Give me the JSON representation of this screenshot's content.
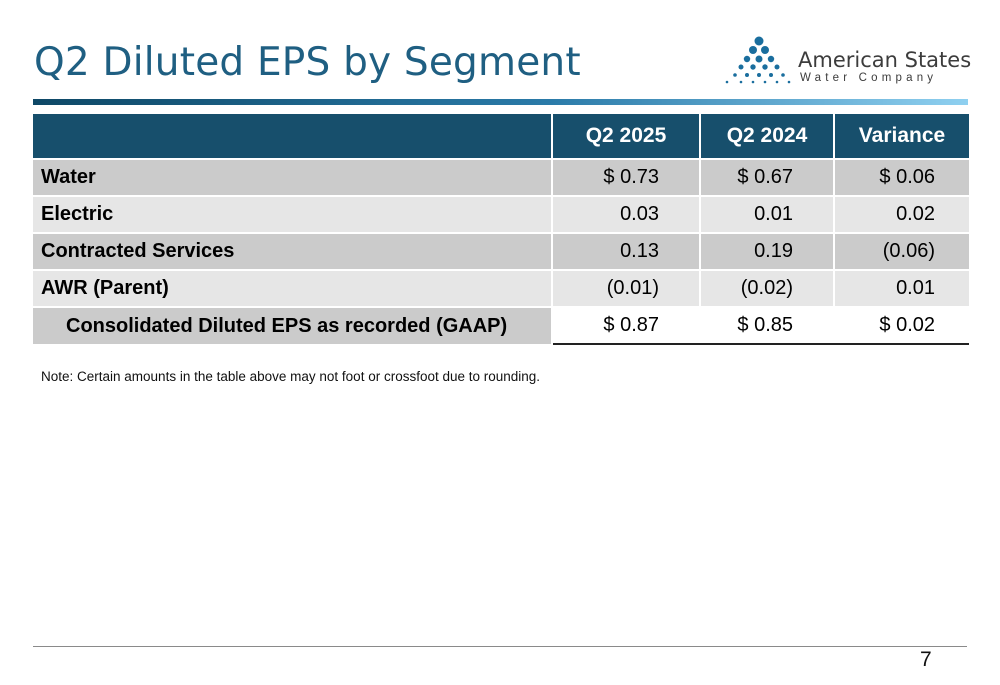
{
  "title": "Q2 Diluted EPS by Segment",
  "logo": {
    "name": "American States",
    "sub": "Water Company"
  },
  "table": {
    "headers": [
      "",
      "Q2 2025",
      "Q2 2024",
      "Variance"
    ],
    "rows": [
      {
        "label": "Water",
        "q2_2025": "$ 0.73",
        "q2_2024": "$  0.67",
        "variance": "$ 0.06"
      },
      {
        "label": "Electric",
        "q2_2025": "0.03",
        "q2_2024": "0.01",
        "variance": "0.02"
      },
      {
        "label": "Contracted Services",
        "q2_2025": "0.13",
        "q2_2024": "0.19",
        "variance": "(0.06)"
      },
      {
        "label": "AWR (Parent)",
        "q2_2025": "(0.01)",
        "q2_2024": "(0.02)",
        "variance": "0.01"
      },
      {
        "label": "Consolidated Diluted EPS as recorded (GAAP)",
        "q2_2025": "$ 0.87",
        "q2_2024": "$  0.85",
        "variance": "$ 0.02"
      }
    ]
  },
  "note": "Note: Certain amounts in the table above may not foot or crossfoot due to rounding.",
  "page_number": "7",
  "colors": {
    "title": "#1f5f82",
    "header_bg": "#174f6c",
    "row_dark": "#cbcbcb",
    "row_light": "#e6e6e6",
    "logo_dots": "#1a6e9e"
  }
}
